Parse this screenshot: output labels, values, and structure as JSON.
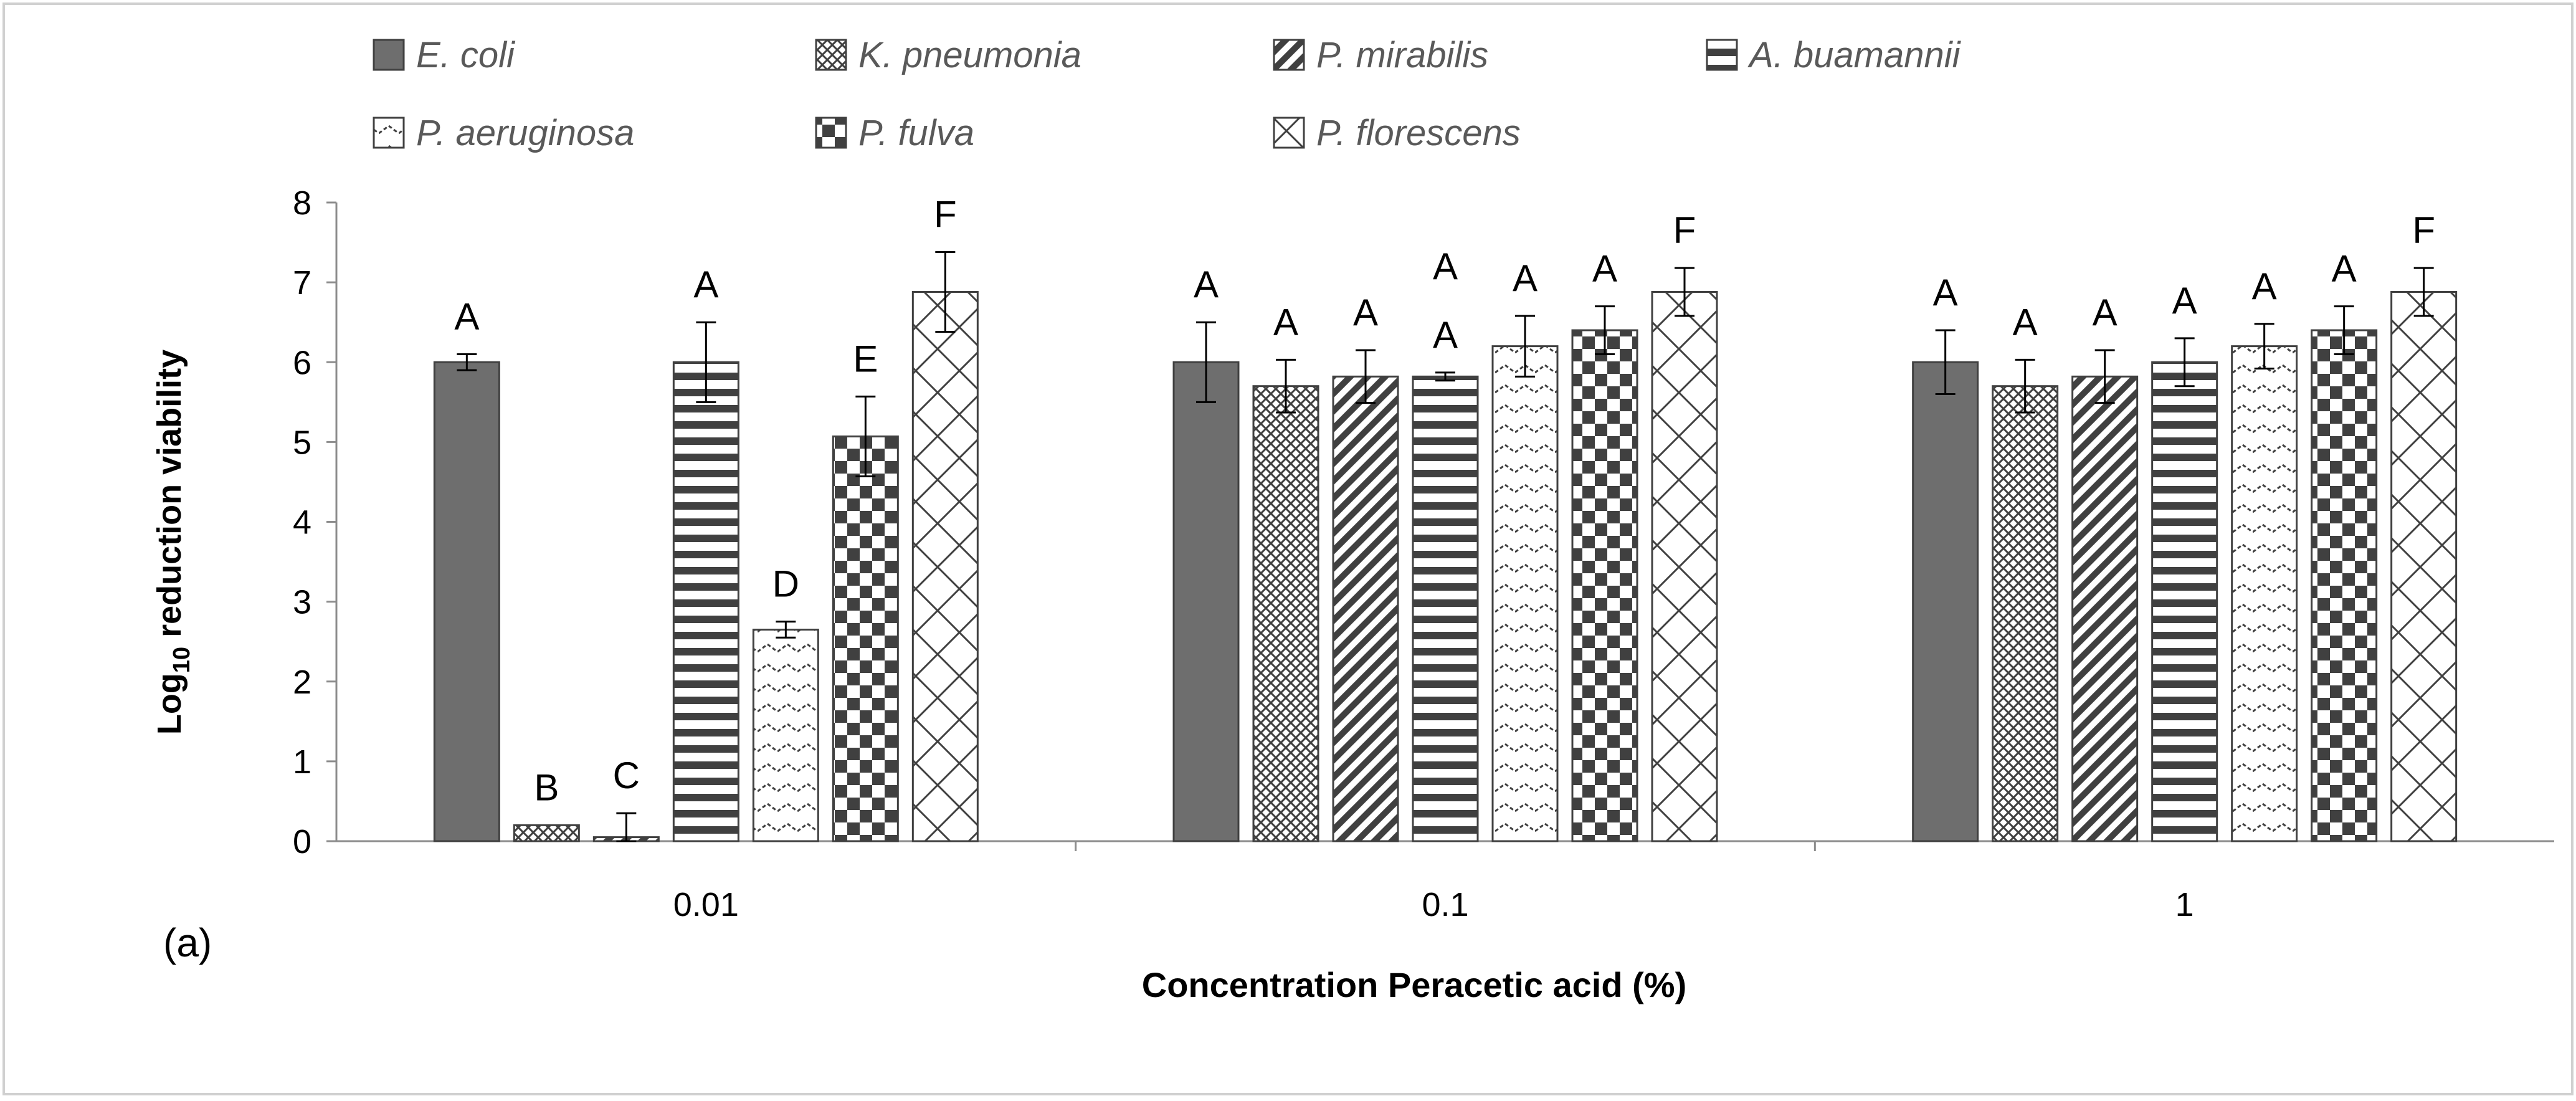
{
  "chart_data": {
    "type": "bar",
    "panel_label": "(a)",
    "xlabel": "Concentration Peracetic acid (%)",
    "ylabel_prefix": "Log",
    "ylabel_subscript": "10",
    "ylabel_suffix": " reduction viability",
    "ylim": [
      0,
      8
    ],
    "yticks": [
      "0",
      "1",
      "2",
      "3",
      "4",
      "5",
      "6",
      "7",
      "8"
    ],
    "grid": false,
    "legend_position": "top",
    "categories": [
      "0.01",
      "0.1",
      "1"
    ],
    "series": [
      {
        "name": "E. coli",
        "pattern": "solid",
        "values": [
          6.0,
          6.0,
          6.0
        ],
        "errors": [
          0.1,
          0.5,
          0.4
        ],
        "letters": [
          "A",
          "A",
          "A"
        ]
      },
      {
        "name": "K. pneumonia",
        "pattern": "crosshatch",
        "values": [
          0.2,
          5.7,
          5.7
        ],
        "errors": [
          0.0,
          0.33,
          0.33
        ],
        "letters": [
          "B",
          "A",
          "A"
        ]
      },
      {
        "name": "P. mirabilis",
        "pattern": "diagonal",
        "values": [
          0.05,
          5.82,
          5.82
        ],
        "errors": [
          0.3,
          0.33,
          0.33
        ],
        "letters": [
          "C",
          "A",
          "A"
        ]
      },
      {
        "name": "A. buamannii",
        "pattern": "horizontal",
        "values": [
          6.0,
          5.82,
          6.0
        ],
        "errors": [
          0.5,
          0.05,
          0.3
        ],
        "letters": [
          "A",
          "A",
          "A"
        ],
        "extra_letters": [
          "",
          "A",
          ""
        ]
      },
      {
        "name": "P. aeruginosa",
        "pattern": "zigzag",
        "values": [
          2.65,
          6.2,
          6.2
        ],
        "errors": [
          0.1,
          0.38,
          0.28
        ],
        "letters": [
          "D",
          "A",
          "A"
        ]
      },
      {
        "name": "P. fulva",
        "pattern": "checker",
        "values": [
          5.07,
          6.4,
          6.4
        ],
        "errors": [
          0.5,
          0.3,
          0.3
        ],
        "letters": [
          "E",
          "A",
          "A"
        ]
      },
      {
        "name": "P. florescens",
        "pattern": "weave",
        "values": [
          6.88,
          6.88,
          6.88
        ],
        "errors": [
          0.5,
          0.3,
          0.3
        ],
        "letters": [
          "F",
          "F",
          "F"
        ]
      }
    ]
  },
  "colors": {
    "bar_fill": "#6e6e6e",
    "bar_stroke": "#404040",
    "axis": "#8c8c8c",
    "text": "#000000",
    "legend_text": "#595959",
    "border": "#d0d0d0"
  }
}
